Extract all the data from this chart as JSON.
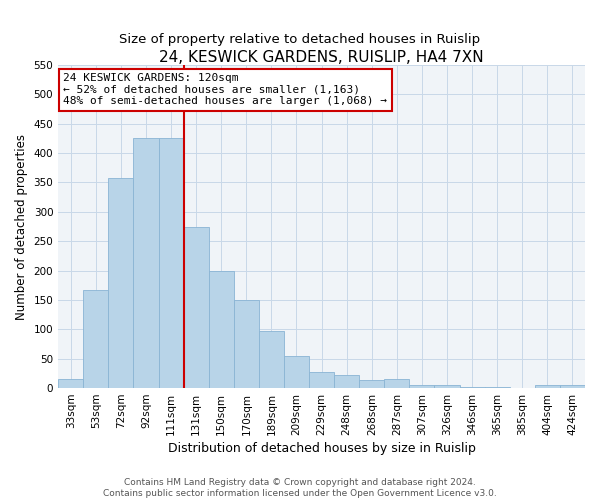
{
  "title": "24, KESWICK GARDENS, RUISLIP, HA4 7XN",
  "subtitle": "Size of property relative to detached houses in Ruislip",
  "xlabel": "Distribution of detached houses by size in Ruislip",
  "ylabel": "Number of detached properties",
  "bar_labels": [
    "33sqm",
    "53sqm",
    "72sqm",
    "92sqm",
    "111sqm",
    "131sqm",
    "150sqm",
    "170sqm",
    "189sqm",
    "209sqm",
    "229sqm",
    "248sqm",
    "268sqm",
    "287sqm",
    "307sqm",
    "326sqm",
    "346sqm",
    "365sqm",
    "385sqm",
    "404sqm",
    "424sqm"
  ],
  "bar_values": [
    15,
    167,
    357,
    425,
    425,
    275,
    200,
    150,
    97,
    55,
    28,
    22,
    13,
    15,
    5,
    5,
    2,
    2,
    0,
    5,
    5
  ],
  "bar_color": "#b8d4e8",
  "bar_edge_color": "#8ab4d4",
  "vline_color": "#cc0000",
  "annotation_title": "24 KESWICK GARDENS: 120sqm",
  "annotation_line1": "← 52% of detached houses are smaller (1,163)",
  "annotation_line2": "48% of semi-detached houses are larger (1,068) →",
  "annotation_box_facecolor": "#ffffff",
  "annotation_box_edgecolor": "#cc0000",
  "ylim": [
    0,
    550
  ],
  "yticks": [
    0,
    50,
    100,
    150,
    200,
    250,
    300,
    350,
    400,
    450,
    500,
    550
  ],
  "footer1": "Contains HM Land Registry data © Crown copyright and database right 2024.",
  "footer2": "Contains public sector information licensed under the Open Government Licence v3.0.",
  "title_fontsize": 11,
  "subtitle_fontsize": 9.5,
  "xlabel_fontsize": 9,
  "ylabel_fontsize": 8.5,
  "tick_fontsize": 7.5,
  "annot_fontsize": 8,
  "footer_fontsize": 6.5,
  "grid_color": "#c8d8e8",
  "background_color": "#f0f4f8"
}
